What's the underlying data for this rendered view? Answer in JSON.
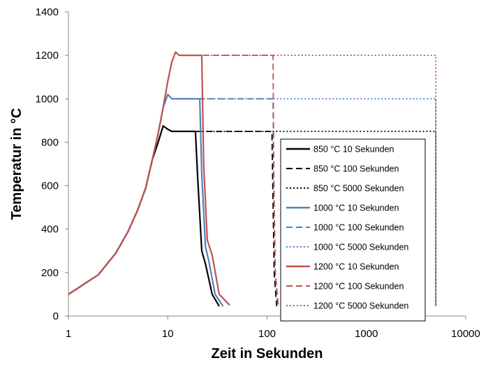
{
  "chart_data": {
    "type": "line",
    "title": "",
    "xlabel": "Zeit in Sekunden",
    "ylabel": "Temperatur in °C",
    "xscale": "log",
    "xlim": [
      1,
      10000
    ],
    "ylim": [
      0,
      1400
    ],
    "x_ticks": [
      1,
      10,
      100,
      1000,
      10000
    ],
    "x_tick_labels": [
      "1",
      "10",
      "100",
      "1000",
      "10000"
    ],
    "y_ticks": [
      0,
      200,
      400,
      600,
      800,
      1000,
      1200,
      1400
    ],
    "y_tick_labels": [
      "0",
      "200",
      "400",
      "600",
      "800",
      "1000",
      "1200",
      "1400"
    ],
    "grid": false,
    "legend_position": "right",
    "series": [
      {
        "name": "850 °C 10 Sekunden",
        "color": "#000000",
        "dash": "solid",
        "x": [
          1,
          2,
          3,
          4,
          5,
          6,
          7,
          8,
          9,
          10,
          11,
          13,
          16,
          19,
          20,
          22,
          24,
          28,
          33
        ],
        "y": [
          100,
          190,
          290,
          390,
          490,
          590,
          720,
          800,
          875,
          860,
          850,
          850,
          850,
          850,
          640,
          300,
          240,
          100,
          45
        ]
      },
      {
        "name": "850 °C 100 Sekunden",
        "color": "#000000",
        "dash": "dashed",
        "x": [
          1,
          2,
          3,
          4,
          5,
          6,
          7,
          8,
          9,
          10,
          11,
          13,
          20,
          40,
          80,
          112,
          114,
          118,
          125
        ],
        "y": [
          100,
          190,
          290,
          390,
          490,
          590,
          720,
          800,
          875,
          860,
          850,
          850,
          850,
          850,
          850,
          850,
          620,
          200,
          45
        ]
      },
      {
        "name": "850 °C 5000 Sekunden",
        "color": "#000000",
        "dash": "dotted",
        "x": [
          1,
          2,
          3,
          4,
          5,
          6,
          7,
          8,
          9,
          10,
          11,
          13,
          20,
          100,
          500,
          1000,
          3000,
          5000,
          5000
        ],
        "y": [
          100,
          190,
          290,
          390,
          490,
          590,
          720,
          800,
          875,
          860,
          850,
          850,
          850,
          850,
          850,
          850,
          850,
          850,
          45
        ]
      },
      {
        "name": "1000 °C 10 Sekunden",
        "color": "#4f81bd",
        "dash": "solid",
        "x": [
          1,
          2,
          3,
          4,
          5,
          6,
          7,
          8,
          9,
          10,
          11,
          13,
          16,
          21,
          22,
          24,
          26,
          30,
          36
        ],
        "y": [
          100,
          190,
          290,
          390,
          490,
          590,
          720,
          840,
          960,
          1020,
          1000,
          1000,
          1000,
          1000,
          650,
          320,
          250,
          100,
          45
        ]
      },
      {
        "name": "1000 °C 100 Sekunden",
        "color": "#4f81bd",
        "dash": "dashed",
        "x": [
          1,
          2,
          3,
          4,
          5,
          6,
          7,
          8,
          9,
          10,
          11,
          13,
          20,
          40,
          80,
          115,
          117,
          121,
          128
        ],
        "y": [
          100,
          190,
          290,
          390,
          490,
          590,
          720,
          840,
          960,
          1020,
          1000,
          1000,
          1000,
          1000,
          1000,
          1000,
          620,
          200,
          45
        ]
      },
      {
        "name": "1000 °C 5000 Sekunden",
        "color": "#4f81bd",
        "dash": "dotted",
        "x": [
          1,
          2,
          3,
          4,
          5,
          6,
          7,
          8,
          9,
          10,
          11,
          13,
          20,
          100,
          500,
          1000,
          3000,
          5000,
          5000
        ],
        "y": [
          100,
          190,
          290,
          390,
          490,
          590,
          720,
          840,
          960,
          1020,
          1000,
          1000,
          1000,
          1000,
          1000,
          1000,
          1000,
          1000,
          45
        ]
      },
      {
        "name": "1200 °C 10 Sekunden",
        "color": "#c0504d",
        "dash": "solid",
        "x": [
          1,
          2,
          3,
          4,
          5,
          6,
          7,
          8,
          9,
          10,
          11,
          12,
          13,
          16,
          22,
          23,
          25,
          28,
          33,
          42
        ],
        "y": [
          100,
          190,
          290,
          390,
          490,
          590,
          720,
          840,
          960,
          1080,
          1170,
          1215,
          1200,
          1200,
          1200,
          700,
          350,
          280,
          100,
          50
        ]
      },
      {
        "name": "1200 °C 100 Sekunden",
        "color": "#c0504d",
        "dash": "dashed",
        "x": [
          1,
          2,
          3,
          4,
          5,
          6,
          7,
          8,
          9,
          10,
          11,
          12,
          13,
          20,
          40,
          80,
          115,
          117,
          121,
          130
        ],
        "y": [
          100,
          190,
          290,
          390,
          490,
          590,
          720,
          840,
          960,
          1080,
          1170,
          1215,
          1200,
          1200,
          1200,
          1200,
          1200,
          620,
          200,
          45
        ]
      },
      {
        "name": "1200 °C 5000 Sekunden",
        "color": "#c0504d",
        "dash": "dotted",
        "x": [
          1,
          2,
          3,
          4,
          5,
          6,
          7,
          8,
          9,
          10,
          11,
          12,
          13,
          20,
          100,
          500,
          1000,
          3000,
          5000,
          5000
        ],
        "y": [
          100,
          190,
          290,
          390,
          490,
          590,
          720,
          840,
          960,
          1080,
          1170,
          1215,
          1200,
          1200,
          1200,
          1200,
          1200,
          1200,
          1200,
          45
        ]
      }
    ]
  }
}
